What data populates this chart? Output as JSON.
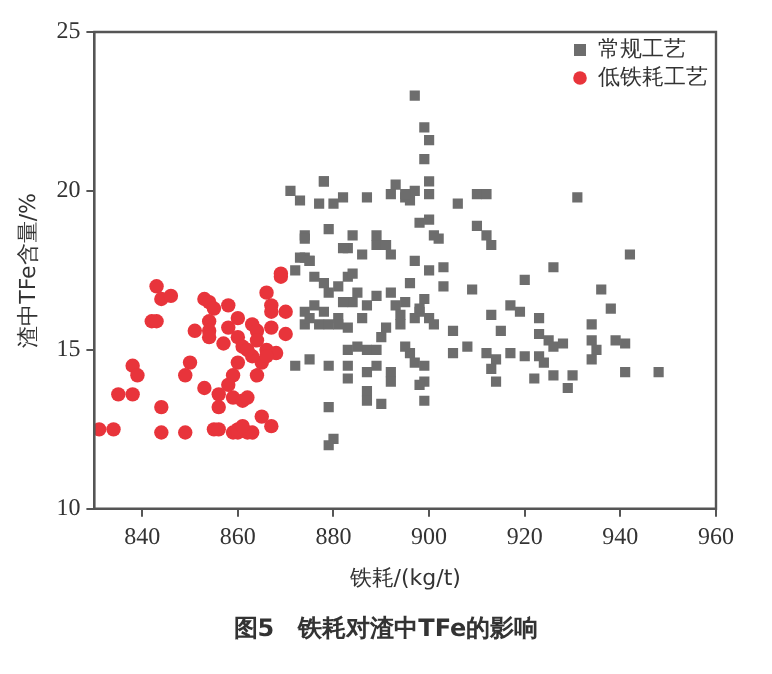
{
  "chart_data": {
    "type": "scatter",
    "title": "图5　铁耗对渣中TFe的影响",
    "xlabel": "铁耗/(kg/t)",
    "ylabel": "渣中TFe含量/%",
    "xlim": [
      830,
      960
    ],
    "xticks": [
      840,
      860,
      880,
      900,
      920,
      940,
      960
    ],
    "ylim": [
      10,
      25
    ],
    "yticks": [
      10,
      15,
      20,
      25
    ],
    "grid": false,
    "legend": "top right",
    "series": [
      {
        "name": "常规工艺",
        "color": "#6d6d6d",
        "marker": "square",
        "x": [
          874,
          874,
          875,
          872,
          876,
          878,
          879,
          881,
          883,
          884,
          885,
          884,
          882,
          881,
          878,
          876,
          874,
          874,
          875,
          877,
          879,
          881,
          883,
          886,
          887,
          889,
          892,
          895,
          896,
          897,
          894,
          891,
          890,
          887,
          889,
          887,
          889,
          892,
          892,
          896,
          897,
          899,
          899,
          895,
          898,
          885,
          883,
          879,
          875,
          872,
          883,
          883,
          887,
          887,
          890,
          879,
          880,
          879,
          883,
          889,
          886,
          892,
          897,
          900,
          897,
          899,
          900,
          899,
          871,
          873,
          878,
          878,
          877,
          880,
          882,
          887,
          892,
          893,
          895,
          896,
          897,
          898,
          900,
          874,
          879,
          884,
          882,
          889,
          891,
          873,
          875,
          895,
          900,
          900,
          906,
          910,
          912,
          931,
          901,
          902,
          910,
          912,
          913,
          942,
          926,
          903,
          903,
          909,
          920,
          936,
          938,
          899,
          898,
          893,
          894,
          900,
          901,
          905,
          913,
          915,
          917,
          919,
          923,
          923,
          925,
          926,
          928,
          934,
          934,
          935,
          939,
          941,
          905,
          908,
          912,
          914,
          913,
          917,
          920,
          923,
          924,
          934,
          941,
          948,
          898,
          899,
          914,
          922,
          926,
          930,
          929
        ],
        "values": [
          18.6,
          17.9,
          17.8,
          17.5,
          17.3,
          17.1,
          16.8,
          17.0,
          17.3,
          17.4,
          16.8,
          16.5,
          16.5,
          16.0,
          16.2,
          16.4,
          16.2,
          15.8,
          16.0,
          15.8,
          15.8,
          15.8,
          15.7,
          16.0,
          16.4,
          16.7,
          16.8,
          16.5,
          17.1,
          16.0,
          15.8,
          15.7,
          15.4,
          15.0,
          15.0,
          14.3,
          14.5,
          14.3,
          14.0,
          14.9,
          14.6,
          14.5,
          14.0,
          15.1,
          16.2,
          15.1,
          15.0,
          14.5,
          14.7,
          14.5,
          14.5,
          14.1,
          13.7,
          13.4,
          13.3,
          13.2,
          12.2,
          12.0,
          18.2,
          18.3,
          18.0,
          18.0,
          17.8,
          17.5,
          23.0,
          22.0,
          21.6,
          21.0,
          20.0,
          19.7,
          20.3,
          20.3,
          19.6,
          19.6,
          19.8,
          19.8,
          19.9,
          20.2,
          19.8,
          19.7,
          20.0,
          19.0,
          19.1,
          18.5,
          18.8,
          18.6,
          18.2,
          18.6,
          18.3,
          17.9,
          17.8,
          19.9,
          19.9,
          20.3,
          19.6,
          19.9,
          19.9,
          19.8,
          18.6,
          18.5,
          18.9,
          18.6,
          18.3,
          18.0,
          17.6,
          17.6,
          17.0,
          16.9,
          17.2,
          16.9,
          16.3,
          16.6,
          16.3,
          16.4,
          16.1,
          16.0,
          15.8,
          15.6,
          16.1,
          15.6,
          16.4,
          16.2,
          16.0,
          15.5,
          15.3,
          15.1,
          15.2,
          15.8,
          15.3,
          15.0,
          15.3,
          15.2,
          14.9,
          15.1,
          14.9,
          14.7,
          14.4,
          14.9,
          14.8,
          14.8,
          14.6,
          14.7,
          14.3,
          14.3,
          13.9,
          13.4,
          14.0,
          14.1,
          14.2,
          14.2,
          13.8
        ]
      },
      {
        "name": "低铁耗工艺",
        "color": "#e8343b",
        "marker": "circle",
        "x": [
          843,
          844,
          846,
          842,
          843,
          838,
          839,
          835,
          838,
          844,
          834,
          831,
          844,
          849,
          850,
          849,
          851,
          853,
          854,
          855,
          854,
          854,
          854,
          858,
          858,
          860,
          860,
          861,
          863,
          864,
          866,
          866,
          867,
          867,
          869,
          869,
          870,
          870,
          867,
          868,
          865,
          864,
          863,
          862,
          860,
          859,
          858,
          856,
          853,
          856,
          855,
          856,
          859,
          860,
          862,
          863,
          860,
          861,
          859,
          861,
          862,
          865,
          867,
          864,
          866,
          857
        ],
        "values": [
          17.0,
          16.6,
          16.7,
          15.9,
          15.9,
          14.5,
          14.2,
          13.6,
          13.6,
          13.2,
          12.5,
          12.5,
          12.4,
          12.4,
          14.6,
          14.2,
          15.6,
          16.6,
          16.5,
          16.3,
          15.9,
          15.6,
          15.4,
          16.4,
          15.7,
          16.0,
          15.4,
          15.1,
          15.8,
          15.6,
          15.0,
          16.8,
          16.4,
          16.2,
          17.3,
          17.4,
          16.2,
          15.5,
          15.7,
          14.9,
          14.6,
          14.2,
          14.8,
          15.0,
          14.6,
          14.2,
          13.9,
          13.6,
          13.8,
          13.2,
          12.5,
          12.5,
          12.4,
          12.4,
          12.4,
          12.4,
          12.5,
          12.6,
          13.5,
          13.4,
          13.5,
          12.9,
          12.6,
          15.3,
          14.8,
          15.2
        ]
      }
    ]
  }
}
